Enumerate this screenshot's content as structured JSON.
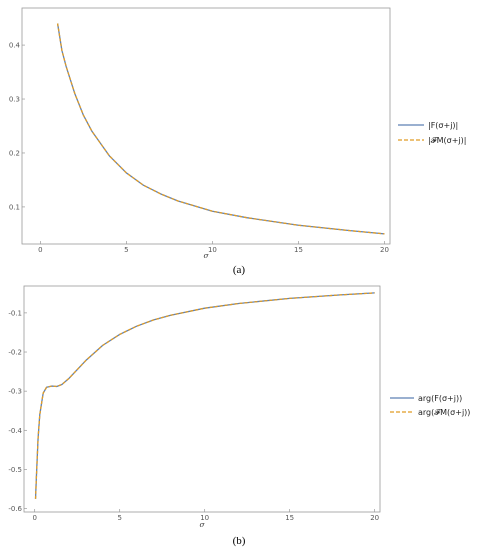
{
  "chart_data": [
    {
      "type": "line",
      "caption": "(a)",
      "xlabel": "σ",
      "xlim": [
        0,
        20
      ],
      "ylim": [
        0.04,
        0.46
      ],
      "xticks": [
        "0",
        "5",
        "10",
        "15",
        "20"
      ],
      "yticks": [
        "0.1",
        "0.2",
        "0.3",
        "0.4"
      ],
      "legend_position": "right",
      "series": [
        {
          "name": "|F(σ+j)|",
          "color": "#5E81B5",
          "style": "solid",
          "x": [
            1,
            1.25,
            1.5,
            2,
            2.5,
            3,
            4,
            5,
            6,
            7,
            8,
            10,
            12,
            15,
            18,
            20
          ],
          "y": [
            0.44,
            0.39,
            0.36,
            0.31,
            0.27,
            0.24,
            0.195,
            0.163,
            0.14,
            0.124,
            0.111,
            0.092,
            0.08,
            0.066,
            0.056,
            0.05
          ]
        },
        {
          "name": "|𝓕M(σ+j)|",
          "color": "#E19C24",
          "style": "dashed",
          "x": [
            1,
            1.25,
            1.5,
            2,
            2.5,
            3,
            4,
            5,
            6,
            7,
            8,
            10,
            12,
            15,
            18,
            20
          ],
          "y": [
            0.44,
            0.39,
            0.36,
            0.31,
            0.27,
            0.24,
            0.195,
            0.163,
            0.14,
            0.124,
            0.111,
            0.092,
            0.08,
            0.066,
            0.056,
            0.05
          ]
        }
      ]
    },
    {
      "type": "line",
      "caption": "(b)",
      "xlabel": "σ",
      "xlim": [
        0,
        20
      ],
      "ylim": [
        -0.6,
        -0.04
      ],
      "xticks": [
        "0",
        "5",
        "10",
        "15",
        "20"
      ],
      "yticks": [
        "-0.6",
        "-0.5",
        "-0.4",
        "-0.3",
        "-0.2",
        "-0.1"
      ],
      "legend_position": "right",
      "series": [
        {
          "name": "arg(F(σ+j))",
          "color": "#5E81B5",
          "style": "solid",
          "x": [
            0.05,
            0.1,
            0.2,
            0.3,
            0.5,
            0.7,
            1,
            1.3,
            1.6,
            2,
            2.5,
            3,
            4,
            5,
            6,
            7,
            8,
            10,
            12,
            15,
            18,
            20
          ],
          "y": [
            -0.575,
            -0.52,
            -0.42,
            -0.36,
            -0.305,
            -0.29,
            -0.287,
            -0.288,
            -0.283,
            -0.268,
            -0.245,
            -0.222,
            -0.183,
            -0.155,
            -0.134,
            -0.118,
            -0.106,
            -0.088,
            -0.076,
            -0.063,
            -0.054,
            -0.049
          ]
        },
        {
          "name": "arg(𝓕M(σ+j))",
          "color": "#E19C24",
          "style": "dashed",
          "x": [
            0.05,
            0.1,
            0.2,
            0.3,
            0.5,
            0.7,
            1,
            1.3,
            1.6,
            2,
            2.5,
            3,
            4,
            5,
            6,
            7,
            8,
            10,
            12,
            15,
            18,
            20
          ],
          "y": [
            -0.575,
            -0.52,
            -0.42,
            -0.36,
            -0.305,
            -0.29,
            -0.287,
            -0.288,
            -0.283,
            -0.268,
            -0.245,
            -0.222,
            -0.183,
            -0.155,
            -0.134,
            -0.118,
            -0.106,
            -0.088,
            -0.076,
            -0.063,
            -0.054,
            -0.049
          ]
        }
      ]
    }
  ]
}
